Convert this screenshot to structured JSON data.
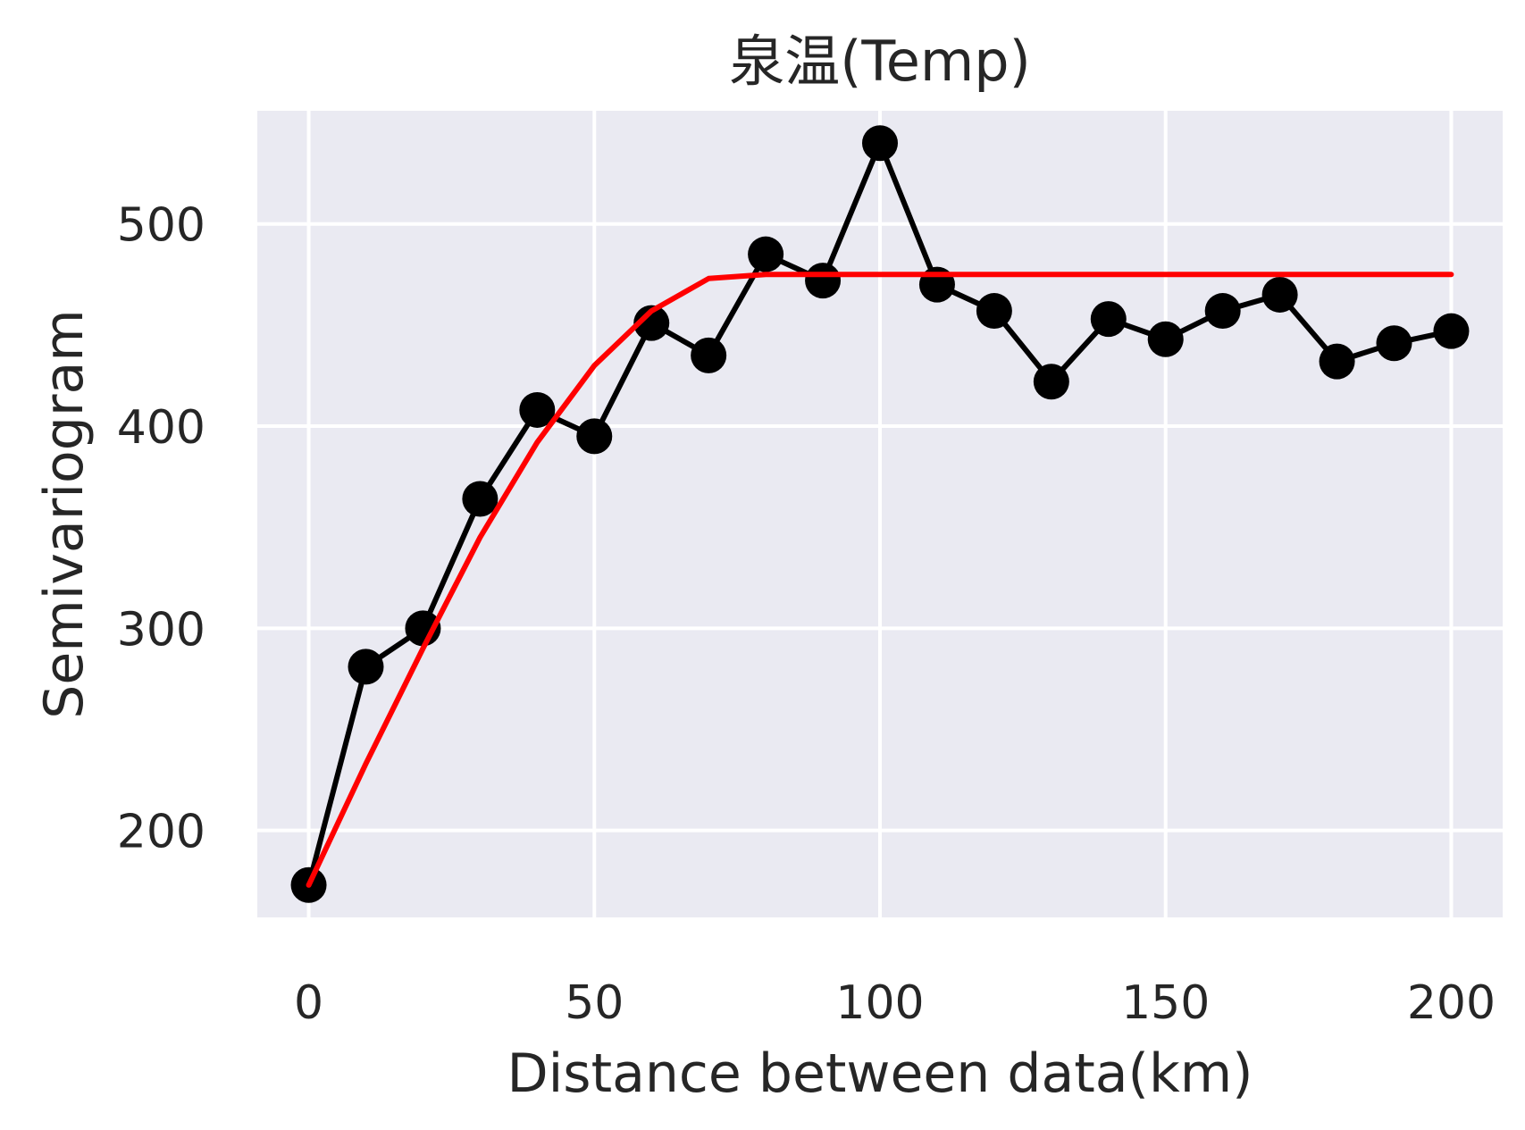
{
  "chart_data": {
    "type": "line",
    "title": "泉温(Temp)",
    "xlabel": "Distance between data(km)",
    "ylabel": "Semivariogram",
    "xlim": [
      -9,
      209
    ],
    "ylim": [
      157,
      556
    ],
    "xticks": [
      0,
      50,
      100,
      150,
      200
    ],
    "yticks": [
      200,
      300,
      400,
      500
    ],
    "grid": true,
    "legend": "none",
    "background_color": "#EAEAF2",
    "grid_color": "#FFFFFF",
    "series": [
      {
        "color": "#000000",
        "marker": "circle",
        "x": [
          0,
          10,
          20,
          30,
          40,
          50,
          60,
          70,
          80,
          90,
          100,
          110,
          120,
          130,
          140,
          150,
          160,
          170,
          180,
          190,
          200
        ],
        "y": [
          173,
          281,
          300,
          364,
          408,
          395,
          451,
          435,
          485,
          472,
          540,
          470,
          457,
          422,
          453,
          443,
          457,
          465,
          432,
          441,
          447
        ]
      },
      {
        "color": "#FF0000",
        "marker": "none",
        "x": [
          0,
          10,
          20,
          30,
          40,
          50,
          60,
          70,
          80,
          90,
          100,
          110,
          120,
          130,
          140,
          150,
          160,
          170,
          180,
          190,
          200
        ],
        "y": [
          173,
          233,
          290,
          345,
          392,
          430,
          457,
          473,
          475,
          475,
          475,
          475,
          475,
          475,
          475,
          475,
          475,
          475,
          475,
          475,
          475
        ]
      }
    ]
  }
}
